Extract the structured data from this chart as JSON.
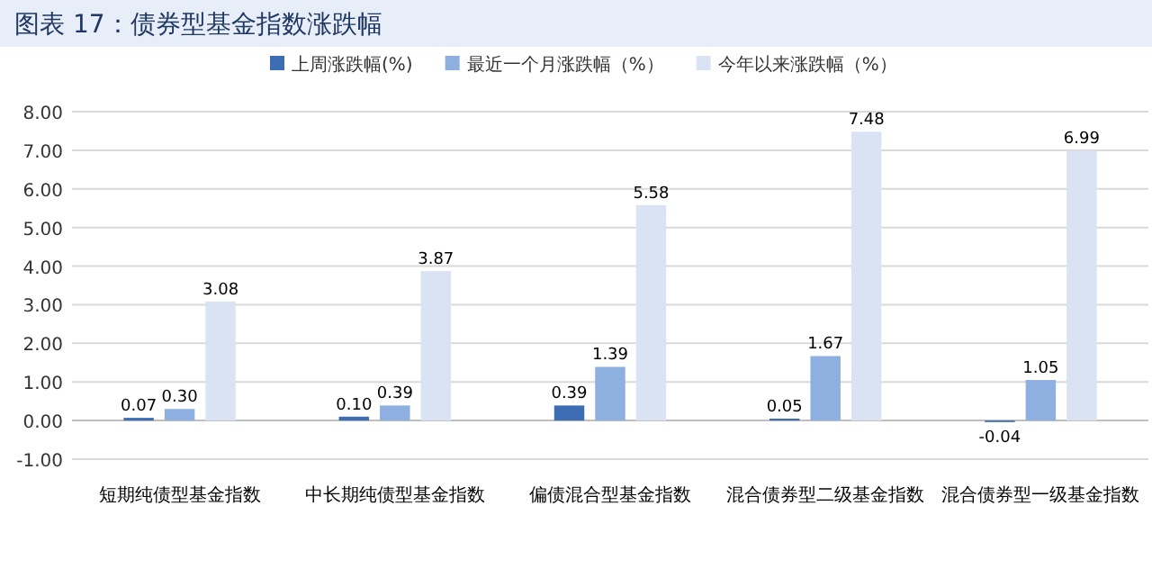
{
  "chart_data": {
    "type": "bar",
    "title": "图表 17：债券型基金指数涨跌幅",
    "categories": [
      "短期纯债型基金指数",
      "中长期纯债型基金指数",
      "偏债混合型基金指数",
      "混合债券型二级基金指数",
      "混合债券型一级基金指数"
    ],
    "series": [
      {
        "name": "上周涨跌幅(%)",
        "color": "#3d6eb4",
        "values": [
          0.07,
          0.1,
          0.39,
          0.05,
          -0.04
        ],
        "value_labels": [
          "0.07",
          "0.10",
          "0.39",
          "0.05",
          "-0.04"
        ]
      },
      {
        "name": "最近一个月涨跌幅（%）",
        "color": "#8eb0e0",
        "values": [
          0.3,
          0.39,
          1.39,
          1.67,
          1.05
        ],
        "value_labels": [
          "0.30",
          "0.39",
          "1.39",
          "1.67",
          "1.05"
        ]
      },
      {
        "name": "今年以来涨跌幅（%）",
        "color": "#dae3f3",
        "values": [
          3.08,
          3.87,
          5.58,
          7.48,
          6.99
        ],
        "value_labels": [
          "3.08",
          "3.87",
          "5.58",
          "7.48",
          "6.99"
        ]
      }
    ],
    "ylim": [
      -1,
      8
    ],
    "yticks": [
      {
        "value": -1,
        "label": "-1.00"
      },
      {
        "value": 0,
        "label": "0.00"
      },
      {
        "value": 1,
        "label": "1.00"
      },
      {
        "value": 2,
        "label": "2.00"
      },
      {
        "value": 3,
        "label": "3.00"
      },
      {
        "value": 4,
        "label": "4.00"
      },
      {
        "value": 5,
        "label": "5.00"
      },
      {
        "value": 6,
        "label": "6.00"
      },
      {
        "value": 7,
        "label": "7.00"
      },
      {
        "value": 8,
        "label": "8.00"
      }
    ],
    "grid": "y",
    "legend": "top"
  }
}
